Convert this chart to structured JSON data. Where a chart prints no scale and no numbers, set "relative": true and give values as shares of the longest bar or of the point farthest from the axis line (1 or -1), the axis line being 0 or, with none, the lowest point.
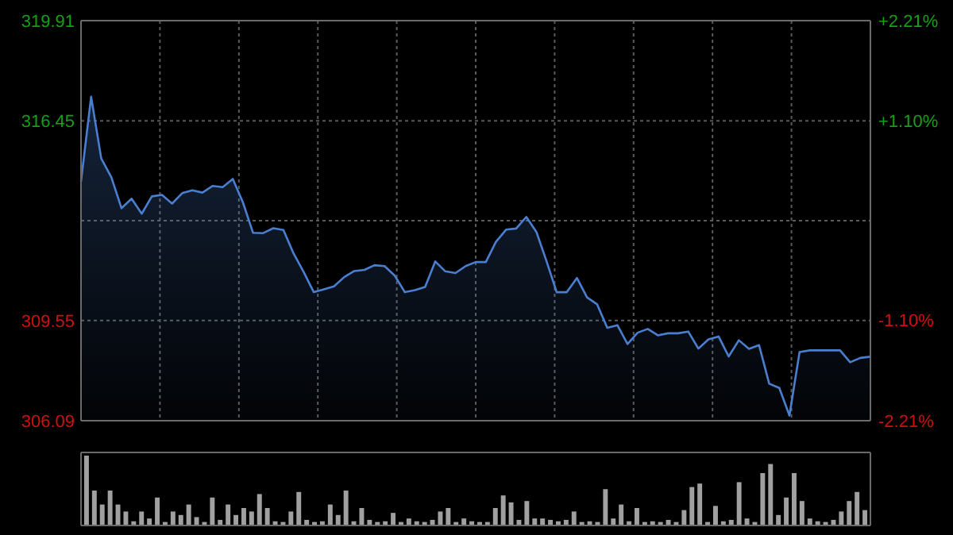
{
  "chart_data": [
    {
      "type": "area",
      "tick_labels": "y",
      "grid": true,
      "categories": [
        null,
        null,
        null,
        null,
        null,
        null,
        null,
        null,
        null,
        null,
        null,
        null,
        null,
        null,
        null,
        null,
        null,
        null,
        null,
        null,
        null,
        null,
        null,
        null,
        null,
        null,
        null,
        null,
        null,
        null,
        null,
        null,
        null,
        null,
        null,
        null,
        null,
        null,
        null,
        null,
        null,
        null,
        null,
        null,
        null,
        null,
        null,
        null,
        null,
        null,
        null,
        null,
        null,
        null,
        null,
        null,
        null,
        null,
        null,
        null,
        null,
        null,
        null,
        null,
        null,
        null,
        null,
        null,
        null,
        null,
        null,
        null,
        null,
        null,
        null,
        null,
        null,
        null,
        null
      ],
      "ylim": [
        306.09,
        319.91
      ],
      "yticks": [
        306.09,
        309.55,
        {
          "value": 313.0,
          "label": null
        },
        316.45,
        319.91
      ],
      "y2lim": [
        -2.21,
        2.21
      ],
      "y2ticks": [
        {
          "value": -2.21,
          "label": "-2.21%"
        },
        {
          "value": -1.1,
          "label": "-1.10%"
        },
        {
          "value": 0,
          "label": null
        },
        {
          "value": 1.1,
          "label": "+1.10%"
        },
        {
          "value": 2.21,
          "label": "+2.21%"
        }
      ],
      "series": [
        {
          "color": "#4a7fd0",
          "values": [
            314.35,
            317.28,
            315.15,
            314.5,
            313.43,
            313.76,
            313.24,
            313.84,
            313.89,
            313.59,
            313.95,
            314.05,
            313.97,
            314.2,
            314.16,
            314.44,
            313.63,
            312.58,
            312.57,
            312.74,
            312.68,
            311.87,
            311.23,
            310.53,
            310.63,
            310.73,
            311.05,
            311.26,
            311.3,
            311.46,
            311.43,
            311.1,
            310.53,
            310.6,
            310.71,
            311.59,
            311.25,
            311.19,
            311.43,
            311.57,
            311.57,
            312.27,
            312.69,
            312.73,
            313.13,
            312.61,
            311.6,
            310.53,
            310.53,
            311.02,
            310.35,
            310.11,
            309.3,
            309.39,
            308.74,
            309.13,
            309.26,
            309.04,
            309.11,
            309.11,
            309.17,
            308.58,
            308.9,
            309.0,
            308.31,
            308.87,
            308.57,
            308.7,
            307.37,
            307.22,
            306.27,
            308.46,
            308.52,
            308.52,
            308.52,
            308.52,
            308.11,
            308.26,
            308.3
          ]
        }
      ]
    },
    {
      "type": "bar",
      "relative": true,
      "tick_labels": false,
      "color": "#a0a0a0",
      "categories": [
        null,
        null,
        null,
        null,
        null,
        null,
        null,
        null,
        null,
        null,
        null,
        null,
        null,
        null,
        null,
        null,
        null,
        null,
        null,
        null,
        null,
        null,
        null,
        null,
        null,
        null,
        null,
        null,
        null,
        null,
        null,
        null,
        null,
        null,
        null,
        null,
        null,
        null,
        null,
        null,
        null,
        null,
        null,
        null,
        null,
        null,
        null,
        null,
        null,
        null,
        null,
        null,
        null,
        null,
        null,
        null,
        null,
        null,
        null,
        null,
        null,
        null,
        null,
        null,
        null,
        null,
        null,
        null,
        null,
        null,
        null,
        null,
        null,
        null,
        null,
        null,
        null,
        null,
        null,
        null,
        null,
        null,
        null,
        null,
        null,
        null,
        null,
        null,
        null,
        null,
        null,
        null,
        null,
        null,
        null,
        null,
        null,
        null,
        null,
        null
      ],
      "values": [
        1.0,
        0.5,
        0.3,
        0.5,
        0.3,
        0.2,
        0.06,
        0.2,
        0.1,
        0.4,
        0.05,
        0.2,
        0.15,
        0.3,
        0.12,
        0.05,
        0.4,
        0.08,
        0.3,
        0.15,
        0.25,
        0.2,
        0.45,
        0.25,
        0.06,
        0.05,
        0.2,
        0.48,
        0.08,
        0.05,
        0.06,
        0.3,
        0.15,
        0.5,
        0.06,
        0.25,
        0.08,
        0.05,
        0.06,
        0.18,
        0.05,
        0.1,
        0.06,
        0.05,
        0.08,
        0.2,
        0.25,
        0.05,
        0.1,
        0.06,
        0.05,
        0.05,
        0.25,
        0.43,
        0.33,
        0.08,
        0.35,
        0.1,
        0.1,
        0.08,
        0.06,
        0.08,
        0.2,
        0.05,
        0.06,
        0.05,
        0.52,
        0.1,
        0.3,
        0.06,
        0.25,
        0.05,
        0.06,
        0.05,
        0.08,
        0.05,
        0.22,
        0.55,
        0.6,
        0.05,
        0.28,
        0.06,
        0.08,
        0.62,
        0.1,
        0.05,
        0.75,
        0.88,
        0.15,
        0.4,
        0.75,
        0.35,
        0.1,
        0.06,
        0.05,
        0.08,
        0.2,
        0.35,
        0.48,
        0.22
      ]
    }
  ]
}
